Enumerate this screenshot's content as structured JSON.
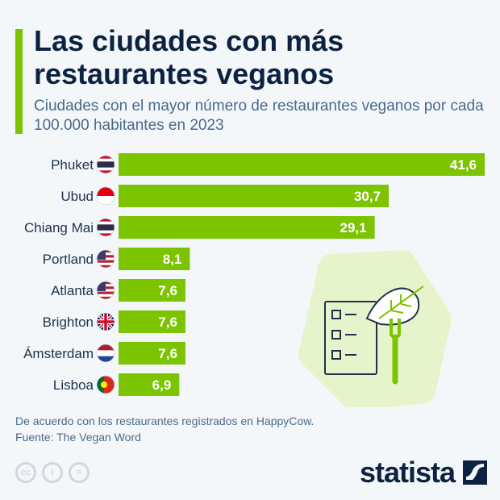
{
  "header": {
    "title": "Las ciudades con más restaurantes veganos",
    "subtitle": "Ciudades con el mayor número de restaurantes veganos por cada 100.000 habitantes en 2023"
  },
  "chart_data": {
    "type": "bar",
    "orientation": "horizontal",
    "categories": [
      "Phuket",
      "Ubud",
      "Chiang Mai",
      "Portland",
      "Atlanta",
      "Brighton",
      "Ámsterdam",
      "Lisboa"
    ],
    "values": [
      41.6,
      30.7,
      29.1,
      8.1,
      7.6,
      7.6,
      7.6,
      6.9
    ],
    "labels": [
      "41,6",
      "30,7",
      "29,1",
      "8,1",
      "7,6",
      "7,6",
      "7,6",
      "6,9"
    ],
    "flags": [
      "thailand",
      "indonesia",
      "thailand",
      "usa",
      "usa",
      "uk",
      "netherlands",
      "portugal"
    ],
    "bar_color": "#7cc300",
    "xlim": [
      0,
      41.6
    ],
    "grid": false
  },
  "footer": {
    "note": "De acuerdo con los restaurantes registrados en HappyCow.",
    "source": "Fuente: The Vegan Word",
    "cc_icons": [
      "cc",
      "by",
      "nd"
    ],
    "brand": "statista"
  }
}
